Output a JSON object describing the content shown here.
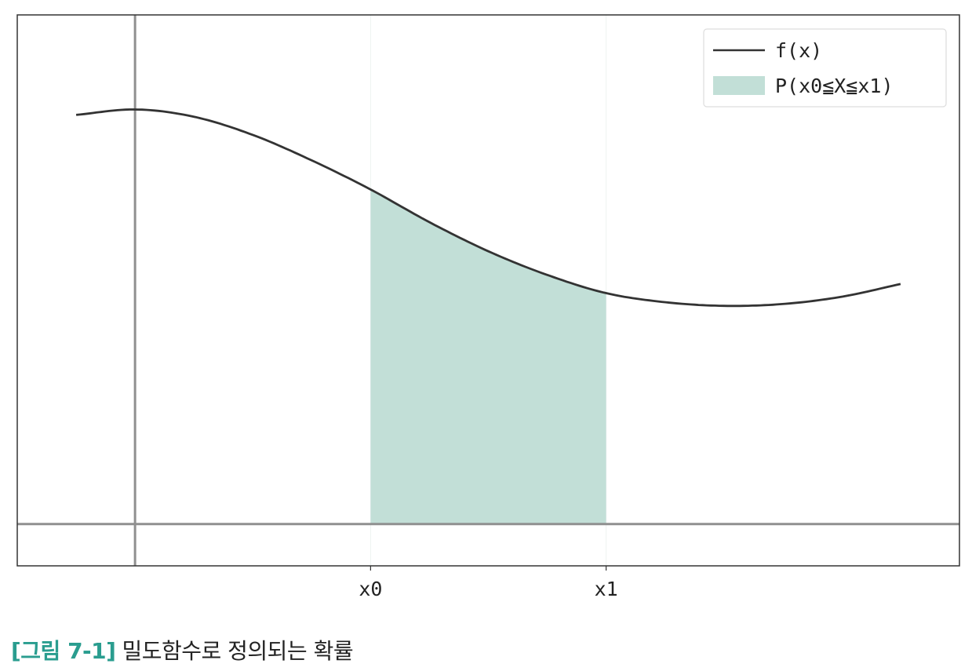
{
  "chart_data": {
    "type": "area",
    "title": "",
    "xlabel": "",
    "ylabel": "",
    "xlim": [
      -0.5,
      3.5
    ],
    "ylim": [
      -0.23,
      2.8
    ],
    "x_ticks": [
      {
        "value": 1.0,
        "label": "x0"
      },
      {
        "value": 2.0,
        "label": "x1"
      }
    ],
    "axis_lines": {
      "x": 0,
      "y": 0
    },
    "curve": {
      "name": "f(x)",
      "color": "#333333",
      "x": [
        -0.25,
        0.0,
        0.25,
        0.5,
        0.75,
        1.0,
        1.25,
        1.5,
        1.75,
        2.0,
        2.25,
        2.5,
        2.75,
        3.0,
        3.25
      ],
      "y": [
        2.25,
        2.28,
        2.24,
        2.14,
        2.0,
        1.84,
        1.66,
        1.5,
        1.37,
        1.27,
        1.22,
        1.2,
        1.21,
        1.25,
        1.32
      ]
    },
    "shaded_region": {
      "name": "P(x0≦X≦x1)",
      "from": 1.0,
      "to": 2.0,
      "color": "#c2dfd7"
    },
    "legend": {
      "placement": "top-right",
      "entries": [
        "f(x)",
        "P(x0≦X≦x1)"
      ]
    },
    "grid": false
  },
  "caption": {
    "label": "[그림 7-1]",
    "text": "밀도함수로 정의되는 확률"
  },
  "colors": {
    "axis_line": "#909090",
    "frame": "#333333",
    "accent": "#2a9d8f"
  }
}
